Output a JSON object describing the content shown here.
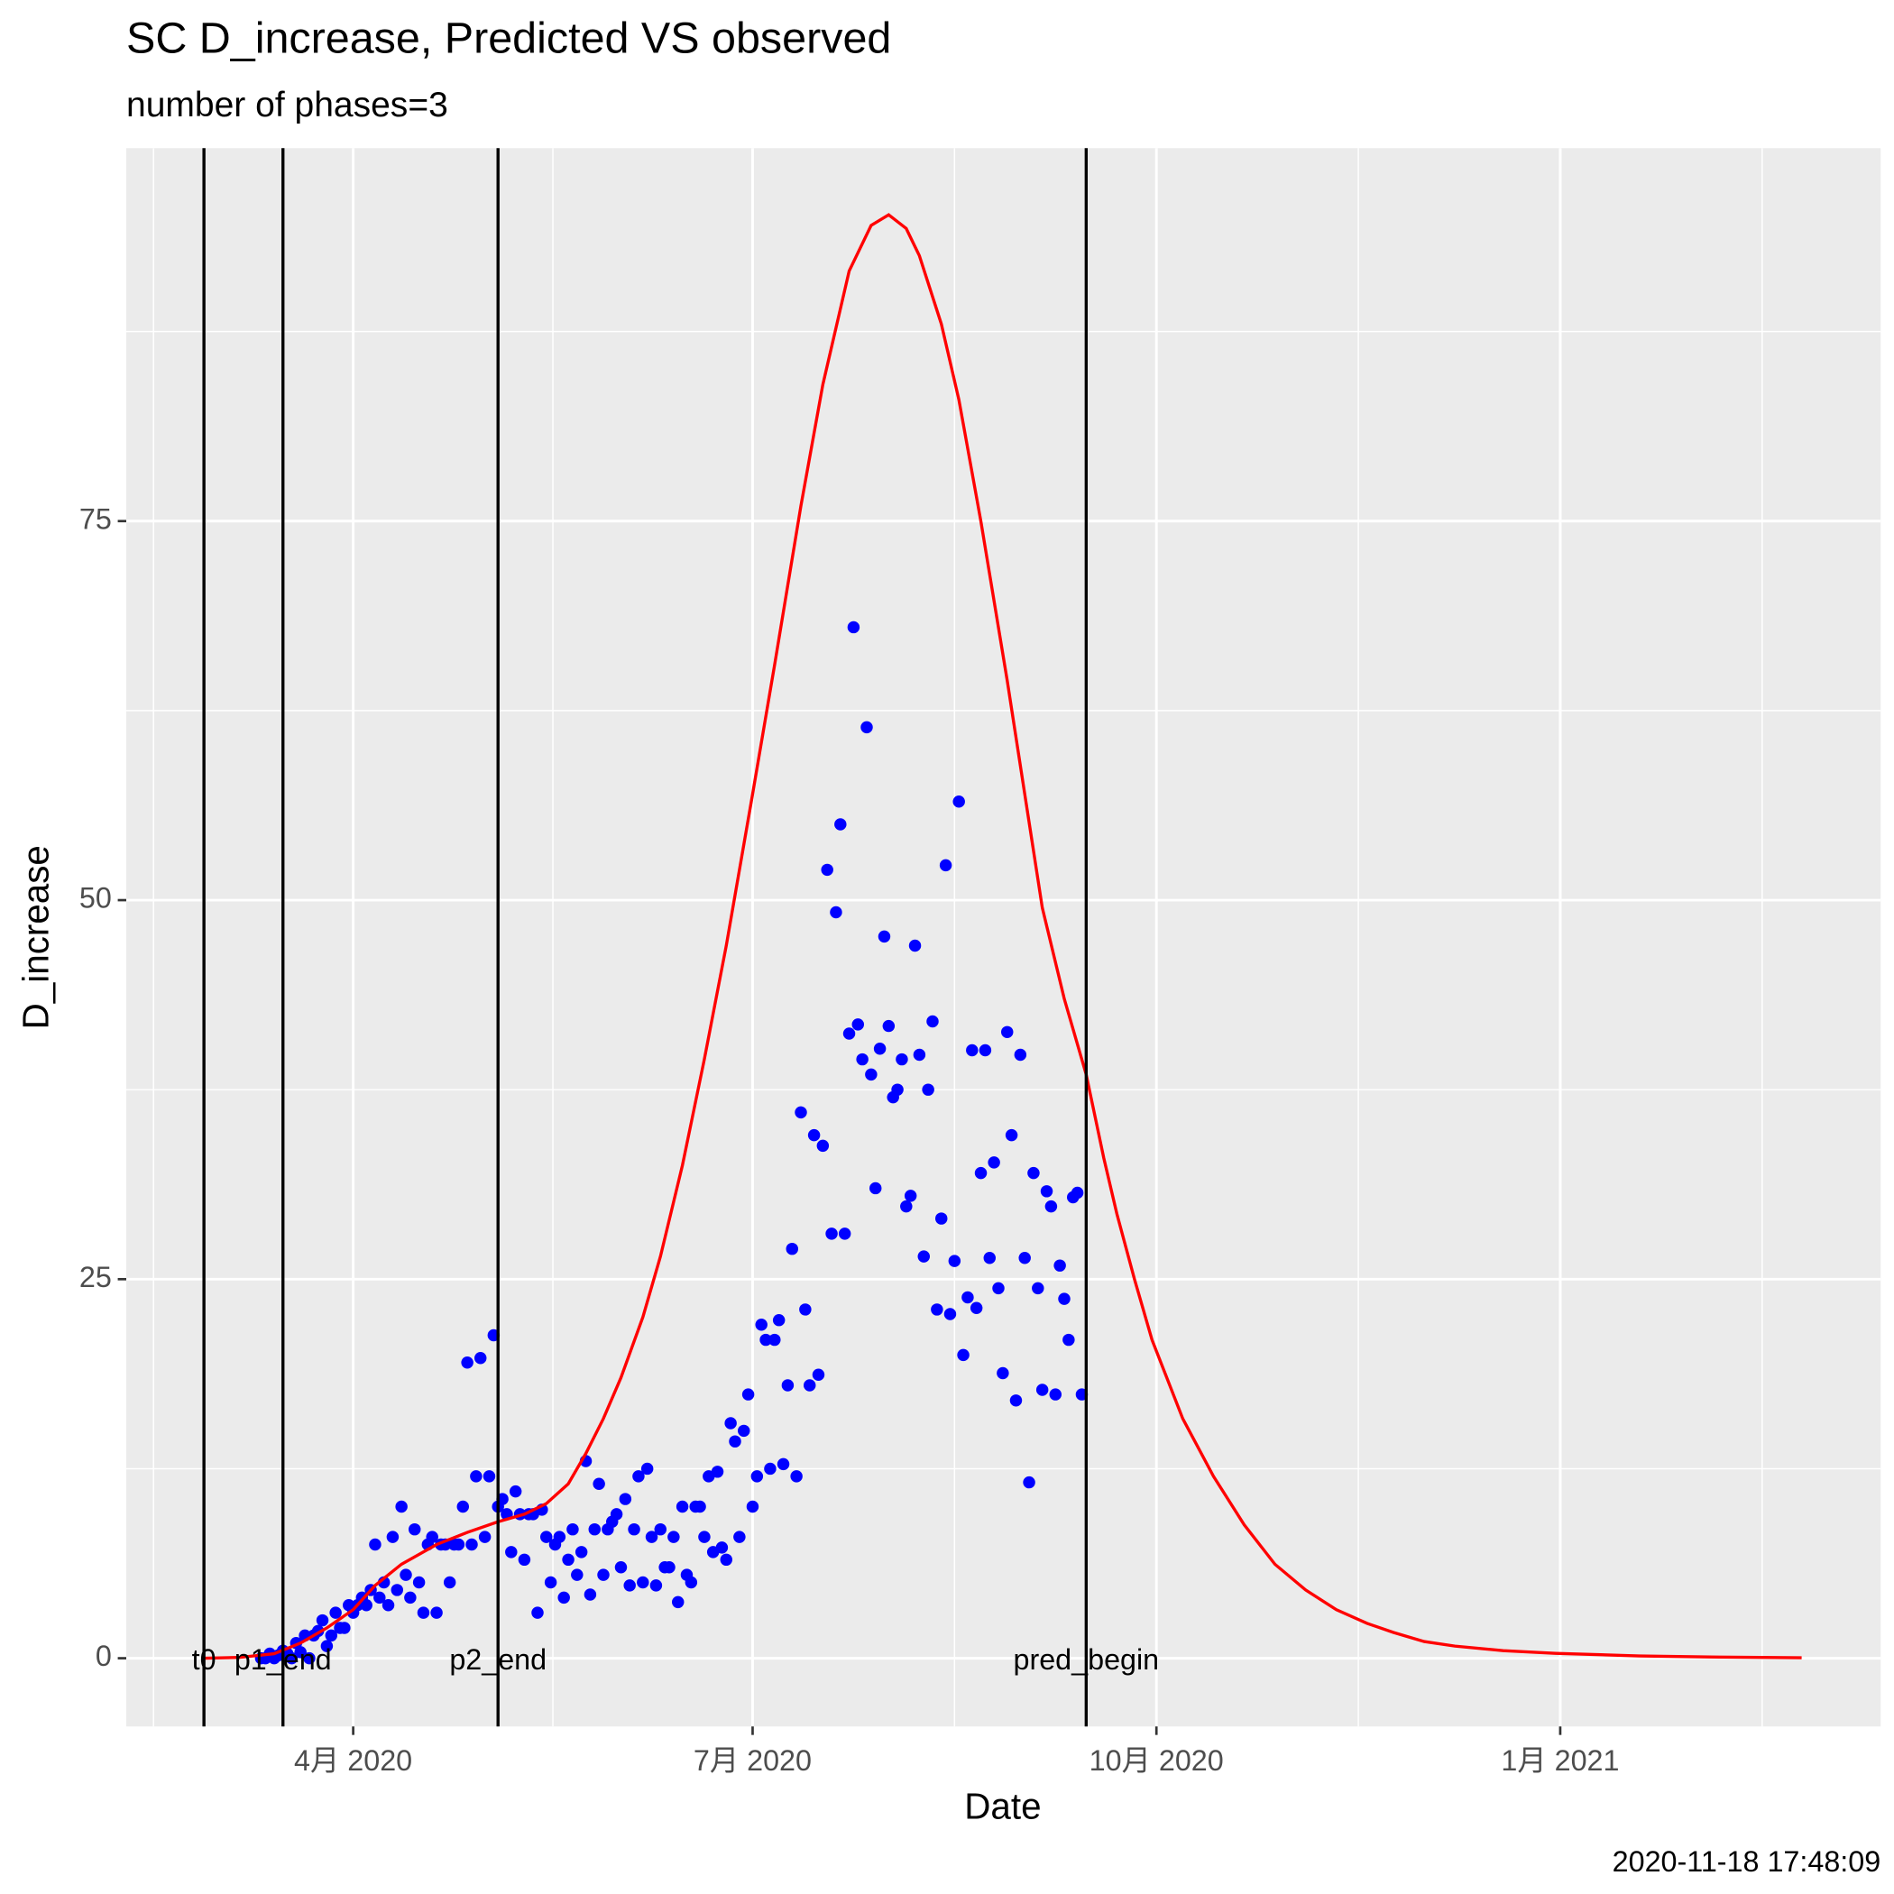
{
  "chart_data": {
    "type": "scatter",
    "title": "SC D_increase, Predicted VS observed",
    "subtitle": "number of phases=3",
    "x_label": "Date",
    "y_label": "D_increase",
    "caption": "2020-11-18 17:48:09",
    "xlim": [
      39.3,
      439.0
    ],
    "xticks": [
      {
        "value": 91,
        "label": "4月 2020"
      },
      {
        "value": 182,
        "label": "7月 2020"
      },
      {
        "value": 274,
        "label": "10月 2020"
      },
      {
        "value": 366,
        "label": "1月 2021"
      }
    ],
    "ylim": [
      -4.5,
      99.6
    ],
    "yticks": [
      0,
      25,
      50,
      75
    ],
    "grid": true,
    "vlines": [
      {
        "x": 57,
        "label": "t0"
      },
      {
        "x": 75,
        "label": "p1_end"
      },
      {
        "x": 124,
        "label": "p2_end"
      },
      {
        "x": 258,
        "label": "pred_begin"
      }
    ],
    "series": [
      {
        "mode": "points",
        "color": "#0000ff",
        "x": [
          70,
          71,
          72,
          73,
          74,
          75,
          76,
          77,
          78,
          79,
          80,
          81,
          82,
          83,
          84,
          85,
          86,
          87,
          88,
          89,
          90,
          91,
          92,
          93,
          94,
          95,
          96,
          97,
          98,
          99,
          100,
          101,
          102,
          103,
          104,
          105,
          106,
          107,
          108,
          109,
          110,
          111,
          112,
          113,
          114,
          115,
          116,
          117,
          118,
          119,
          120,
          121,
          122,
          123,
          124,
          125,
          126,
          127,
          128,
          129,
          130,
          131,
          132,
          133,
          134,
          135,
          136,
          137,
          138,
          139,
          140,
          141,
          142,
          143,
          144,
          145,
          146,
          147,
          148,
          149,
          150,
          151,
          152,
          153,
          154,
          155,
          156,
          157,
          158,
          159,
          160,
          161,
          162,
          163,
          164,
          165,
          166,
          167,
          168,
          169,
          170,
          171,
          172,
          173,
          174,
          175,
          176,
          177,
          178,
          179,
          180,
          181,
          182,
          183,
          184,
          185,
          186,
          187,
          188,
          189,
          190,
          191,
          192,
          193,
          194,
          195,
          196,
          197,
          198,
          199,
          200,
          201,
          202,
          203,
          204,
          205,
          206,
          207,
          208,
          209,
          210,
          211,
          212,
          213,
          214,
          215,
          216,
          217,
          218,
          219,
          220,
          221,
          222,
          223,
          224,
          225,
          226,
          227,
          228,
          229,
          230,
          231,
          232,
          233,
          234,
          235,
          236,
          237,
          238,
          239,
          240,
          241,
          242,
          243,
          244,
          245,
          246,
          247,
          248,
          249,
          250,
          251,
          252,
          253,
          254,
          255,
          256,
          257
        ],
        "values": [
          0,
          0,
          0.3,
          0,
          0.2,
          0.5,
          0.3,
          0,
          1,
          0.4,
          1.5,
          0,
          1.5,
          1.8,
          2.5,
          0.8,
          1.5,
          3,
          2,
          2,
          3.5,
          3,
          3.5,
          4,
          3.5,
          4.5,
          7.5,
          4,
          5,
          3.5,
          8,
          4.5,
          10,
          5.5,
          4,
          8.5,
          5,
          3,
          7.5,
          8,
          3,
          7.5,
          7.5,
          5,
          7.5,
          7.5,
          10,
          19.5,
          7.5,
          12,
          19.8,
          8,
          12,
          21.3,
          10,
          10.5,
          9.5,
          7,
          11,
          9.5,
          6.5,
          9.5,
          9.5,
          3,
          9.8,
          8,
          5,
          7.5,
          8,
          4,
          6.5,
          8.5,
          5.5,
          7,
          13,
          4.2,
          8.5,
          11.5,
          5.5,
          8.5,
          9,
          9.5,
          6,
          10.5,
          4.8,
          8.5,
          12,
          5,
          12.5,
          8,
          4.8,
          8.5,
          6,
          6,
          8,
          3.7,
          10,
          5.5,
          5,
          10,
          10,
          8,
          12,
          7,
          12.3,
          7.3,
          6.5,
          15.5,
          14.3,
          8,
          15,
          17.4,
          10,
          12,
          22,
          21,
          12.5,
          21,
          22.3,
          12.8,
          18,
          27,
          12,
          36,
          23,
          18,
          34.5,
          18.7,
          33.8,
          52,
          28,
          49.2,
          55,
          28,
          41.2,
          68,
          41.8,
          39.5,
          61.4,
          38.5,
          31,
          40.2,
          47.6,
          41.7,
          37,
          37.5,
          39.5,
          29.8,
          30.5,
          47,
          39.8,
          26.5,
          37.5,
          42,
          23,
          29,
          52.3,
          22.7,
          26.2,
          56.5,
          20,
          23.8,
          40.1,
          23.1,
          32,
          40.1,
          26.4,
          32.7,
          24.4,
          18.8,
          41.3,
          34.5,
          17,
          39.8,
          26.4,
          11.6,
          32,
          24.4,
          17.7,
          30.8,
          29.8,
          17.4,
          25.9,
          23.7,
          21,
          30.4,
          30.7,
          17.4
        ]
      },
      {
        "mode": "line",
        "color": "#ff0000",
        "x": [
          57,
          65,
          73,
          79,
          85,
          91,
          96,
          102,
          110,
          117,
          124,
          130,
          135,
          140,
          144,
          148,
          152,
          157,
          161,
          166,
          171,
          176,
          182,
          187,
          193,
          198,
          204,
          209,
          213,
          217,
          220,
          225,
          229,
          234,
          240,
          244,
          248,
          253,
          258,
          262,
          265,
          269,
          273,
          280,
          287,
          294,
          301,
          308,
          315,
          322,
          328,
          335,
          342,
          353,
          365,
          384,
          400,
          421
        ],
        "values": [
          0,
          0.05,
          0.3,
          1,
          2,
          3.2,
          4.8,
          6.2,
          7.5,
          8.3,
          9,
          9.5,
          10.2,
          11.5,
          13.5,
          15.8,
          18.5,
          22.5,
          26.5,
          32.5,
          39.5,
          47,
          57,
          65.5,
          76,
          84,
          91.5,
          94.5,
          95.2,
          94.3,
          92.5,
          88,
          83,
          75,
          64.5,
          57,
          49.5,
          43.5,
          38.5,
          33,
          29.3,
          25,
          21,
          15.8,
          12,
          8.8,
          6.2,
          4.5,
          3.2,
          2.3,
          1.7,
          1.1,
          0.8,
          0.5,
          0.32,
          0.15,
          0.08,
          0.03
        ]
      }
    ]
  }
}
